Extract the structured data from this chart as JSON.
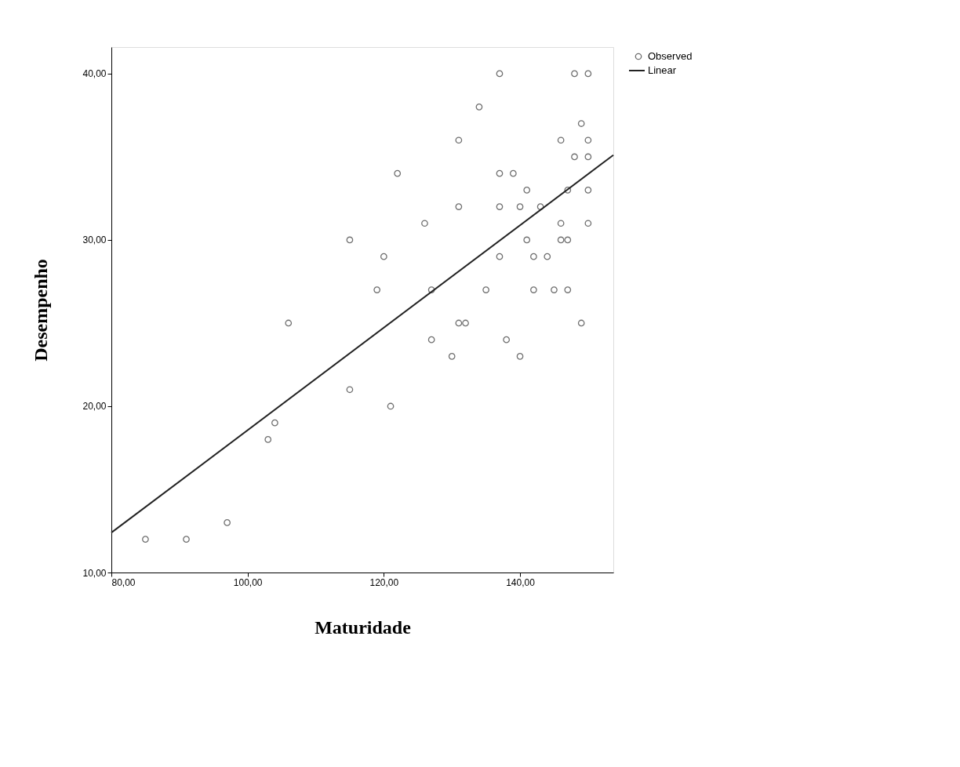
{
  "chart_data": {
    "type": "scatter",
    "xlabel": "Maturidade",
    "ylabel": "Desempenho",
    "xlim": [
      80,
      153.7
    ],
    "ylim": [
      10,
      41.6
    ],
    "xticks": [
      {
        "value": 80,
        "label": "80,00"
      },
      {
        "value": 100,
        "label": "100,00"
      },
      {
        "value": 120,
        "label": "120,00"
      },
      {
        "value": 140,
        "label": "140,00"
      }
    ],
    "yticks": [
      {
        "value": 10,
        "label": "10,00"
      },
      {
        "value": 20,
        "label": "20,00"
      },
      {
        "value": 30,
        "label": "30,00"
      },
      {
        "value": 40,
        "label": "40,00"
      }
    ],
    "grid": false,
    "legend": "top right",
    "series": [
      {
        "name": "Observed",
        "marker": "circle",
        "color": "#333333",
        "x": [
          85,
          91,
          97,
          103,
          104,
          106,
          115,
          115,
          119,
          120,
          121,
          122,
          126,
          127,
          127,
          130,
          131,
          131,
          131,
          132,
          134,
          135,
          137,
          137,
          137,
          137,
          138,
          139,
          140,
          140,
          141,
          141,
          142,
          142,
          143,
          144,
          145,
          146,
          146,
          146,
          147,
          147,
          147,
          148,
          148,
          149,
          149,
          150,
          150,
          150,
          150,
          150
        ],
        "values": [
          12,
          12,
          13,
          18,
          19,
          25,
          30,
          21,
          27,
          29,
          20,
          34,
          31,
          27,
          24,
          23,
          36,
          32,
          25,
          25,
          38,
          27,
          40,
          34,
          32,
          29,
          24,
          34,
          32,
          23,
          33,
          30,
          29,
          27,
          32,
          29,
          27,
          36,
          31,
          30,
          33,
          30,
          27,
          40,
          35,
          37,
          25,
          40,
          36,
          35,
          33,
          31
        ]
      },
      {
        "name": "Linear",
        "type": "line",
        "color": "#222222",
        "line_style": "solid",
        "x": [
          80,
          153.7
        ],
        "values": [
          12.4,
          35.1
        ]
      }
    ]
  }
}
